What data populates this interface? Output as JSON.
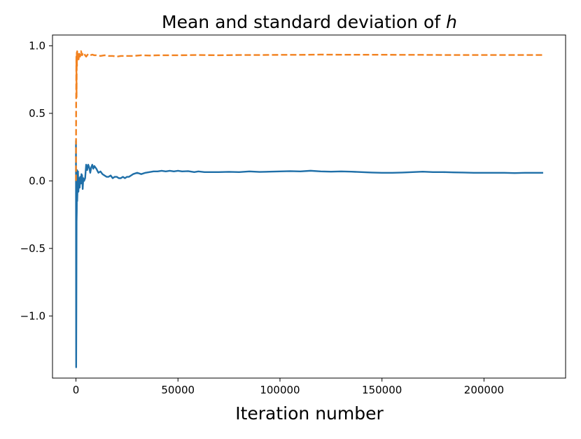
{
  "chart_data": {
    "type": "line",
    "title": "Mean and standard deviation of ",
    "title_variable": "h",
    "xlabel": "Iteration number",
    "ylabel": "",
    "xlim": [
      -11500,
      240000
    ],
    "ylim": [
      -1.46,
      1.08
    ],
    "xticks": [
      0,
      50000,
      100000,
      150000,
      200000
    ],
    "xtick_labels": [
      "0",
      "50000",
      "100000",
      "150000",
      "200000"
    ],
    "yticks": [
      -1.0,
      -0.5,
      0.0,
      0.5,
      1.0
    ],
    "ytick_labels": [
      "−1.0",
      "−0.5",
      "0.0",
      "0.5",
      "1.0"
    ],
    "grid": false,
    "series": [
      {
        "name": "mean",
        "color": "#1f6fa8",
        "style": "solid",
        "x": [
          0,
          100,
          200,
          300,
          400,
          500,
          600,
          800,
          1000,
          1200,
          1500,
          1800,
          2100,
          2400,
          2700,
          3000,
          3300,
          3600,
          4000,
          4500,
          5000,
          5500,
          6000,
          6500,
          7000,
          7500,
          8000,
          8500,
          9000,
          10000,
          11000,
          12000,
          13000,
          14000,
          15000,
          16000,
          17000,
          18000,
          19000,
          20000,
          21000,
          22000,
          23000,
          24000,
          25000,
          26000,
          27000,
          28000,
          30000,
          32000,
          34000,
          36000,
          38000,
          40000,
          42000,
          44000,
          46000,
          48000,
          50000,
          52000,
          55000,
          58000,
          60000,
          63000,
          66000,
          70000,
          75000,
          80000,
          85000,
          90000,
          95000,
          100000,
          105000,
          110000,
          115000,
          120000,
          125000,
          130000,
          135000,
          140000,
          145000,
          150000,
          155000,
          160000,
          165000,
          170000,
          175000,
          180000,
          185000,
          190000,
          195000,
          200000,
          205000,
          210000,
          215000,
          220000,
          225000,
          229000
        ],
        "y": [
          0.3,
          -1.38,
          -0.9,
          -0.3,
          -0.22,
          0.08,
          -0.15,
          -0.05,
          0.07,
          -0.08,
          0.02,
          -0.05,
          0.03,
          -0.02,
          0.05,
          0.04,
          -0.06,
          0.02,
          0.0,
          0.02,
          0.12,
          0.08,
          0.12,
          0.1,
          0.06,
          0.1,
          0.12,
          0.09,
          0.11,
          0.09,
          0.06,
          0.07,
          0.05,
          0.04,
          0.03,
          0.03,
          0.04,
          0.02,
          0.03,
          0.03,
          0.02,
          0.02,
          0.03,
          0.02,
          0.03,
          0.03,
          0.04,
          0.05,
          0.06,
          0.05,
          0.06,
          0.065,
          0.07,
          0.07,
          0.075,
          0.07,
          0.075,
          0.07,
          0.075,
          0.07,
          0.072,
          0.065,
          0.07,
          0.065,
          0.065,
          0.065,
          0.067,
          0.065,
          0.07,
          0.066,
          0.068,
          0.07,
          0.072,
          0.07,
          0.075,
          0.07,
          0.068,
          0.07,
          0.068,
          0.065,
          0.062,
          0.06,
          0.06,
          0.062,
          0.065,
          0.068,
          0.065,
          0.065,
          0.063,
          0.062,
          0.06,
          0.06,
          0.06,
          0.06,
          0.058,
          0.06,
          0.06,
          0.06
        ]
      },
      {
        "name": "standard deviation",
        "color": "#f28220",
        "style": "dashed",
        "x": [
          0,
          100,
          200,
          300,
          400,
          500,
          600,
          800,
          1000,
          1300,
          1600,
          2000,
          2500,
          3000,
          3500,
          4000,
          5000,
          6000,
          7000,
          8000,
          9000,
          10000,
          12000,
          14000,
          16000,
          18000,
          20000,
          22000,
          25000,
          28000,
          32000,
          36000,
          40000,
          45000,
          50000,
          60000,
          70000,
          80000,
          90000,
          100000,
          110000,
          120000,
          130000,
          140000,
          150000,
          160000,
          170000,
          180000,
          190000,
          200000,
          210000,
          220000,
          229000
        ],
        "y": [
          0.0,
          0.6,
          0.92,
          0.62,
          0.95,
          0.85,
          0.96,
          0.9,
          0.94,
          0.9,
          0.95,
          0.92,
          0.96,
          0.93,
          0.95,
          0.94,
          0.92,
          0.94,
          0.93,
          0.935,
          0.93,
          0.93,
          0.925,
          0.93,
          0.925,
          0.925,
          0.92,
          0.925,
          0.925,
          0.925,
          0.93,
          0.928,
          0.93,
          0.93,
          0.93,
          0.932,
          0.93,
          0.932,
          0.932,
          0.933,
          0.933,
          0.935,
          0.934,
          0.934,
          0.934,
          0.933,
          0.933,
          0.932,
          0.932,
          0.932,
          0.932,
          0.932,
          0.932
        ]
      }
    ]
  }
}
